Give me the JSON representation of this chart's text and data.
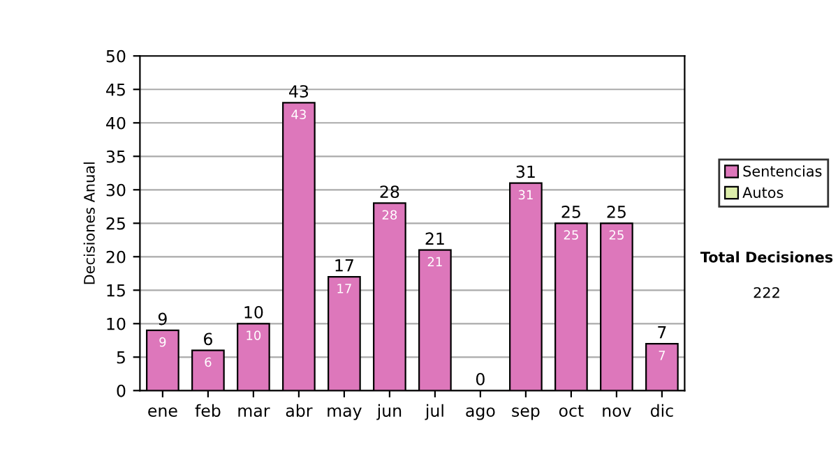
{
  "chart_data": {
    "type": "bar",
    "stacked": true,
    "ylabel": "Decisiones Anual",
    "categories": [
      "ene",
      "feb",
      "mar",
      "abr",
      "may",
      "jun",
      "jul",
      "ago",
      "sep",
      "oct",
      "nov",
      "dic"
    ],
    "series": [
      {
        "name": "Sentencias",
        "color": "#dd77bb",
        "values": [
          9,
          6,
          10,
          43,
          17,
          28,
          21,
          0,
          31,
          25,
          25,
          7
        ],
        "value_labels": [
          "9",
          "6",
          "10",
          "43",
          "17",
          "28",
          "21",
          null,
          "31",
          "25",
          "25",
          "7"
        ]
      },
      {
        "name": "Autos",
        "color": "#ddeeaa",
        "values": [
          0,
          0,
          0,
          0,
          0,
          0,
          0,
          0,
          0,
          0,
          0,
          0
        ]
      }
    ],
    "totals": [
      "9",
      "6",
      "10",
      "43",
      "17",
      "28",
      "21",
      "0",
      "31",
      "25",
      "25",
      "7"
    ],
    "ylim": [
      0,
      50
    ],
    "yticks": [
      0,
      5,
      10,
      15,
      20,
      25,
      30,
      35,
      40,
      45,
      50
    ],
    "grid": "y",
    "legend": "right",
    "annotations": [
      "Total Decisiones",
      "222"
    ]
  }
}
